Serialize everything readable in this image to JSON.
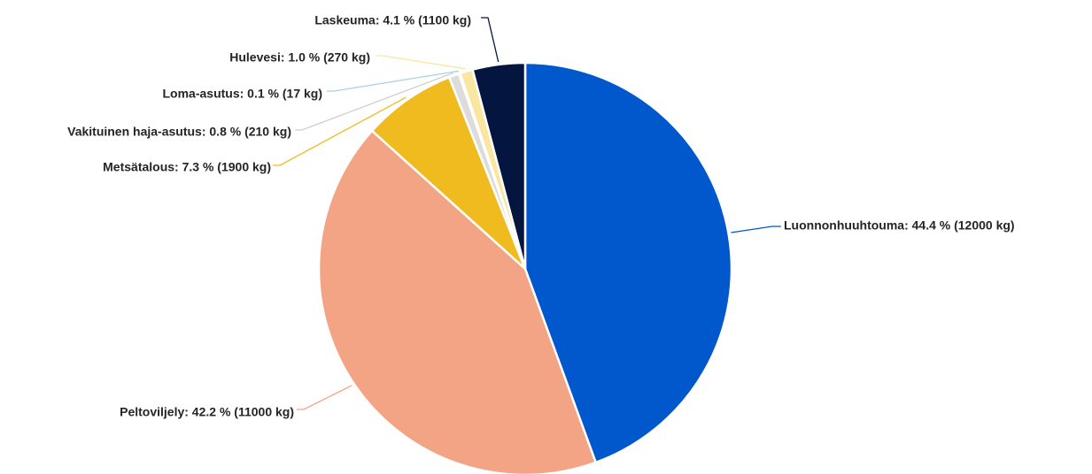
{
  "chart_data": {
    "type": "pie",
    "title": "",
    "unit": "kg",
    "start_angle_deg": 0,
    "direction": "clockwise",
    "slices": [
      {
        "name": "Luonnonhuuhtouma",
        "percent": 44.4,
        "value": 12000,
        "color": "#0058CC",
        "label": "Luonnonhuuhtouma: 44.4 % (12000 kg)"
      },
      {
        "name": "Peltoviljely",
        "percent": 42.2,
        "value": 11000,
        "color": "#F2A484",
        "label": "Peltoviljely: 42.2 % (11000 kg)"
      },
      {
        "name": "Metsätalous",
        "percent": 7.3,
        "value": 1900,
        "color": "#F0BB1F",
        "label": "Metsätalous: 7.3 % (1900 kg)"
      },
      {
        "name": "Vakituinen haja-asutus",
        "percent": 0.8,
        "value": 210,
        "color": "#DCDCDC",
        "label": "Vakituinen haja-asutus: 0.8 % (210 kg)"
      },
      {
        "name": "Loma-asutus",
        "percent": 0.1,
        "value": 17,
        "color": "#A8CFEA",
        "label": "Loma-asutus: 0.1 % (17 kg)"
      },
      {
        "name": "Hulevesi",
        "percent": 1.0,
        "value": 270,
        "color": "#F9E6A0",
        "label": "Hulevesi: 1.0 % (270 kg)"
      },
      {
        "name": "Laskeuma",
        "percent": 4.1,
        "value": 1100,
        "color": "#041540",
        "label": "Laskeuma: 4.1 % (1100 kg)"
      }
    ],
    "label_placement": "outside-with-leader-lines",
    "legend": "none"
  }
}
